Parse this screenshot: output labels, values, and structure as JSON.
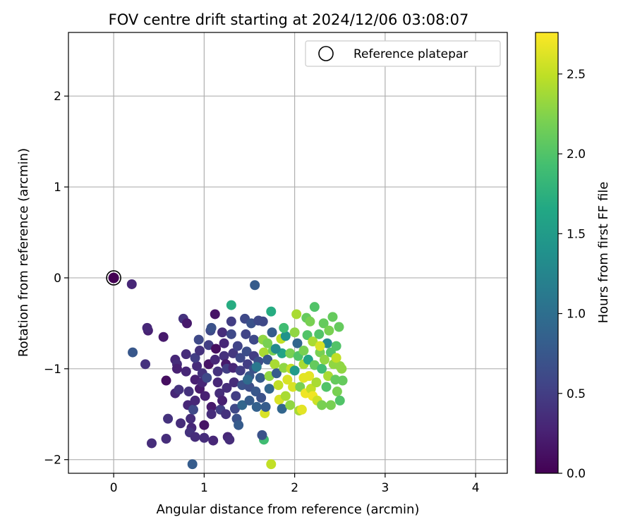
{
  "chart_data": {
    "type": "scatter",
    "title": "FOV centre drift starting at 2024/12/06 03:08:07",
    "xlabel": "Angular distance from reference (arcmin)",
    "ylabel": "Rotation from reference (arcmin)",
    "xlim": [
      -0.5,
      4.35
    ],
    "ylim": [
      -2.15,
      2.7
    ],
    "xticks": [
      0,
      1,
      2,
      3,
      4
    ],
    "yticks": [
      -2,
      -1,
      0,
      1,
      2
    ],
    "grid": true,
    "legend": {
      "position": "top-right",
      "entries": [
        "Reference platepar"
      ]
    },
    "reference_point": {
      "x": 0,
      "y": 0,
      "hours": 0.0
    },
    "colorbar": {
      "label": "Hours from first FF file",
      "colormap": "viridis",
      "range": [
        0,
        2.76
      ],
      "ticks": [
        0.0,
        0.5,
        1.0,
        1.5,
        2.0,
        2.5
      ]
    },
    "series": [
      {
        "points": [
          [
            0.2,
            -0.07,
            0.3
          ],
          [
            0.21,
            -0.82,
            0.75
          ],
          [
            0.35,
            -0.95,
            0.4
          ],
          [
            0.38,
            -0.58,
            0.25
          ],
          [
            0.37,
            -0.55,
            0.3
          ],
          [
            0.42,
            -1.82,
            0.35
          ],
          [
            0.55,
            -0.65,
            0.2
          ],
          [
            0.58,
            -1.13,
            0.1
          ],
          [
            0.6,
            -1.55,
            0.4
          ],
          [
            0.58,
            -1.77,
            0.35
          ],
          [
            0.68,
            -0.9,
            0.3
          ],
          [
            0.7,
            -0.95,
            0.35
          ],
          [
            0.7,
            -1.0,
            0.25
          ],
          [
            0.68,
            -1.27,
            0.3
          ],
          [
            0.72,
            -1.23,
            0.4
          ],
          [
            0.74,
            -1.6,
            0.35
          ],
          [
            0.77,
            -0.45,
            0.4
          ],
          [
            0.81,
            -0.5,
            0.2
          ],
          [
            0.8,
            -0.84,
            0.35
          ],
          [
            0.8,
            -1.03,
            0.3
          ],
          [
            0.83,
            -1.25,
            0.4
          ],
          [
            0.82,
            -1.4,
            0.3
          ],
          [
            0.85,
            -1.55,
            0.35
          ],
          [
            0.86,
            -1.65,
            0.3
          ],
          [
            0.84,
            -1.7,
            0.4
          ],
          [
            0.9,
            -1.75,
            0.35
          ],
          [
            0.87,
            -2.05,
            0.8
          ],
          [
            0.88,
            -1.45,
            0.6
          ],
          [
            0.9,
            -1.35,
            0.3
          ],
          [
            0.9,
            -1.12,
            0.25
          ],
          [
            0.92,
            -0.97,
            0.35
          ],
          [
            0.9,
            -0.88,
            0.5
          ],
          [
            0.95,
            -0.8,
            0.4
          ],
          [
            0.94,
            -0.68,
            0.6
          ],
          [
            0.95,
            -1.22,
            0.2
          ],
          [
            0.98,
            -1.15,
            0.3
          ],
          [
            0.98,
            -1.05,
            0.4
          ],
          [
            1.0,
            -1.76,
            0.35
          ],
          [
            1.0,
            -1.62,
            0.15
          ],
          [
            1.01,
            -1.3,
            0.25
          ],
          [
            1.03,
            -1.1,
            0.6
          ],
          [
            1.05,
            -0.95,
            0.15
          ],
          [
            1.05,
            -0.74,
            0.5
          ],
          [
            1.07,
            -0.58,
            0.6
          ],
          [
            1.08,
            -0.55,
            0.7
          ],
          [
            1.08,
            -1.42,
            0.2
          ],
          [
            1.08,
            -1.5,
            0.35
          ],
          [
            1.1,
            -1.79,
            0.3
          ],
          [
            1.12,
            -0.4,
            0.15
          ],
          [
            1.13,
            -0.78,
            0.1
          ],
          [
            1.12,
            -0.9,
            0.3
          ],
          [
            1.15,
            -1.03,
            0.4
          ],
          [
            1.15,
            -1.15,
            0.3
          ],
          [
            1.17,
            -1.27,
            0.35
          ],
          [
            1.18,
            -1.45,
            0.5
          ],
          [
            1.2,
            -1.35,
            0.25
          ],
          [
            1.2,
            -0.6,
            0.35
          ],
          [
            1.22,
            -0.72,
            0.3
          ],
          [
            1.22,
            -0.86,
            0.4
          ],
          [
            1.24,
            -0.95,
            0.2
          ],
          [
            1.25,
            -1.0,
            0.5
          ],
          [
            1.25,
            -1.21,
            0.35
          ],
          [
            1.24,
            -1.5,
            0.4
          ],
          [
            1.26,
            -1.75,
            0.3
          ],
          [
            1.28,
            -1.78,
            0.35
          ],
          [
            1.3,
            -0.3,
            1.7
          ],
          [
            1.3,
            -0.48,
            0.5
          ],
          [
            1.3,
            -0.62,
            0.6
          ],
          [
            1.32,
            -0.83,
            0.45
          ],
          [
            1.32,
            -0.99,
            0.3
          ],
          [
            1.33,
            -1.15,
            0.35
          ],
          [
            1.35,
            -1.3,
            0.5
          ],
          [
            1.34,
            -1.44,
            0.6
          ],
          [
            1.36,
            -1.55,
            0.7
          ],
          [
            1.38,
            -1.62,
            0.8
          ],
          [
            1.37,
            -0.75,
            0.55
          ],
          [
            1.4,
            -0.88,
            0.6
          ],
          [
            1.4,
            -1.02,
            0.5
          ],
          [
            1.42,
            -1.18,
            0.7
          ],
          [
            1.42,
            -1.4,
            0.9
          ],
          [
            1.45,
            -0.45,
            0.6
          ],
          [
            1.46,
            -0.62,
            0.55
          ],
          [
            1.47,
            -0.81,
            0.65
          ],
          [
            1.48,
            -0.95,
            0.5
          ],
          [
            1.5,
            -1.08,
            0.75
          ],
          [
            1.5,
            -1.2,
            0.65
          ],
          [
            1.5,
            -1.35,
            0.8
          ],
          [
            1.52,
            -0.5,
            0.7
          ],
          [
            1.55,
            -0.68,
            0.6
          ],
          [
            1.55,
            -0.86,
            0.5
          ],
          [
            1.55,
            -1.0,
            0.7
          ],
          [
            1.56,
            -0.08,
            0.8
          ],
          [
            1.57,
            -1.25,
            0.75
          ],
          [
            1.58,
            -1.42,
            0.85
          ],
          [
            1.6,
            -0.47,
            0.6
          ],
          [
            1.6,
            -0.92,
            0.65
          ],
          [
            1.62,
            -1.1,
            0.8
          ],
          [
            1.63,
            -1.32,
            0.7
          ],
          [
            1.65,
            -0.48,
            0.6
          ],
          [
            1.65,
            -0.68,
            2.3
          ],
          [
            1.66,
            -0.82,
            2.4
          ],
          [
            1.66,
            -1.78,
            1.9
          ],
          [
            1.64,
            -1.73,
            0.7
          ],
          [
            1.67,
            -1.49,
            2.6
          ],
          [
            1.68,
            -1.42,
            0.8
          ],
          [
            1.7,
            -0.72,
            2.2
          ],
          [
            1.7,
            -0.9,
            0.75
          ],
          [
            1.72,
            -1.08,
            2.3
          ],
          [
            1.72,
            -1.22,
            0.9
          ],
          [
            1.74,
            -0.37,
            1.7
          ],
          [
            1.74,
            -2.05,
            2.5
          ],
          [
            1.75,
            -0.6,
            0.8
          ],
          [
            1.76,
            -0.8,
            2.2
          ],
          [
            1.78,
            -0.95,
            2.4
          ],
          [
            1.8,
            -1.05,
            0.8
          ],
          [
            1.82,
            -1.18,
            2.5
          ],
          [
            1.83,
            -1.34,
            2.6
          ],
          [
            1.85,
            -0.67,
            2.5
          ],
          [
            1.86,
            -0.83,
            1.6
          ],
          [
            1.88,
            -0.99,
            2.3
          ],
          [
            1.86,
            -1.44,
            0.9
          ],
          [
            1.9,
            -0.64,
            1.4
          ],
          [
            1.9,
            -1.3,
            2.4
          ],
          [
            1.92,
            -1.12,
            2.6
          ],
          [
            1.95,
            -0.83,
            2.2
          ],
          [
            1.96,
            -1.0,
            2.5
          ],
          [
            1.98,
            -1.2,
            2.6
          ],
          [
            2.0,
            -0.6,
            2.3
          ],
          [
            2.0,
            -1.02,
            1.5
          ],
          [
            2.02,
            -0.4,
            2.4
          ],
          [
            2.03,
            -0.72,
            0.9
          ],
          [
            2.04,
            -0.86,
            2.0
          ],
          [
            2.05,
            -1.46,
            2.4
          ],
          [
            2.06,
            -1.2,
            2.2
          ],
          [
            2.08,
            -1.45,
            2.65
          ],
          [
            2.1,
            -0.8,
            2.2
          ],
          [
            2.1,
            -0.95,
            2.4
          ],
          [
            2.12,
            -1.27,
            2.7
          ],
          [
            2.13,
            -0.44,
            2.1
          ],
          [
            2.14,
            -0.63,
            2.0
          ],
          [
            2.15,
            -0.9,
            1.6
          ],
          [
            2.16,
            -1.08,
            2.65
          ],
          [
            2.17,
            -0.48,
            2.2
          ],
          [
            2.18,
            -1.22,
            2.5
          ],
          [
            2.2,
            -0.7,
            2.4
          ],
          [
            2.2,
            -1.3,
            2.7
          ],
          [
            2.22,
            -0.32,
            2.0
          ],
          [
            2.22,
            -0.96,
            2.1
          ],
          [
            2.24,
            -1.15,
            2.4
          ],
          [
            2.25,
            -1.35,
            2.55
          ],
          [
            2.27,
            -0.62,
            2.0
          ],
          [
            2.28,
            -0.82,
            2.2
          ],
          [
            2.3,
            -1.0,
            1.9
          ],
          [
            2.3,
            -1.4,
            2.2
          ],
          [
            2.32,
            -0.5,
            2.1
          ],
          [
            2.33,
            -0.9,
            2.3
          ],
          [
            2.35,
            -1.2,
            2.0
          ],
          [
            2.36,
            -0.72,
            1.3
          ],
          [
            2.37,
            -1.08,
            2.4
          ],
          [
            2.38,
            -0.58,
            2.2
          ],
          [
            2.4,
            -0.82,
            2.0
          ],
          [
            2.4,
            -1.4,
            2.2
          ],
          [
            2.42,
            -0.43,
            2.1
          ],
          [
            2.43,
            -0.95,
            2.3
          ],
          [
            2.45,
            -1.12,
            2.1
          ],
          [
            2.46,
            -0.75,
            2.0
          ],
          [
            2.47,
            -1.25,
            2.2
          ],
          [
            2.49,
            -0.54,
            2.1
          ],
          [
            2.5,
            -0.97,
            2.3
          ],
          [
            2.5,
            -1.35,
            2.0
          ],
          [
            2.52,
            -1.0,
            2.3
          ],
          [
            2.53,
            -1.13,
            2.1
          ],
          [
            2.46,
            -0.88,
            2.5
          ],
          [
            2.28,
            -0.75,
            2.6
          ],
          [
            2.1,
            -1.1,
            2.65
          ],
          [
            1.95,
            -1.4,
            2.3
          ],
          [
            1.88,
            -0.55,
            1.9
          ],
          [
            1.79,
            -0.78,
            1.3
          ],
          [
            1.58,
            -0.98,
            1.1
          ],
          [
            1.48,
            -1.12,
            0.95
          ]
        ]
      }
    ]
  }
}
